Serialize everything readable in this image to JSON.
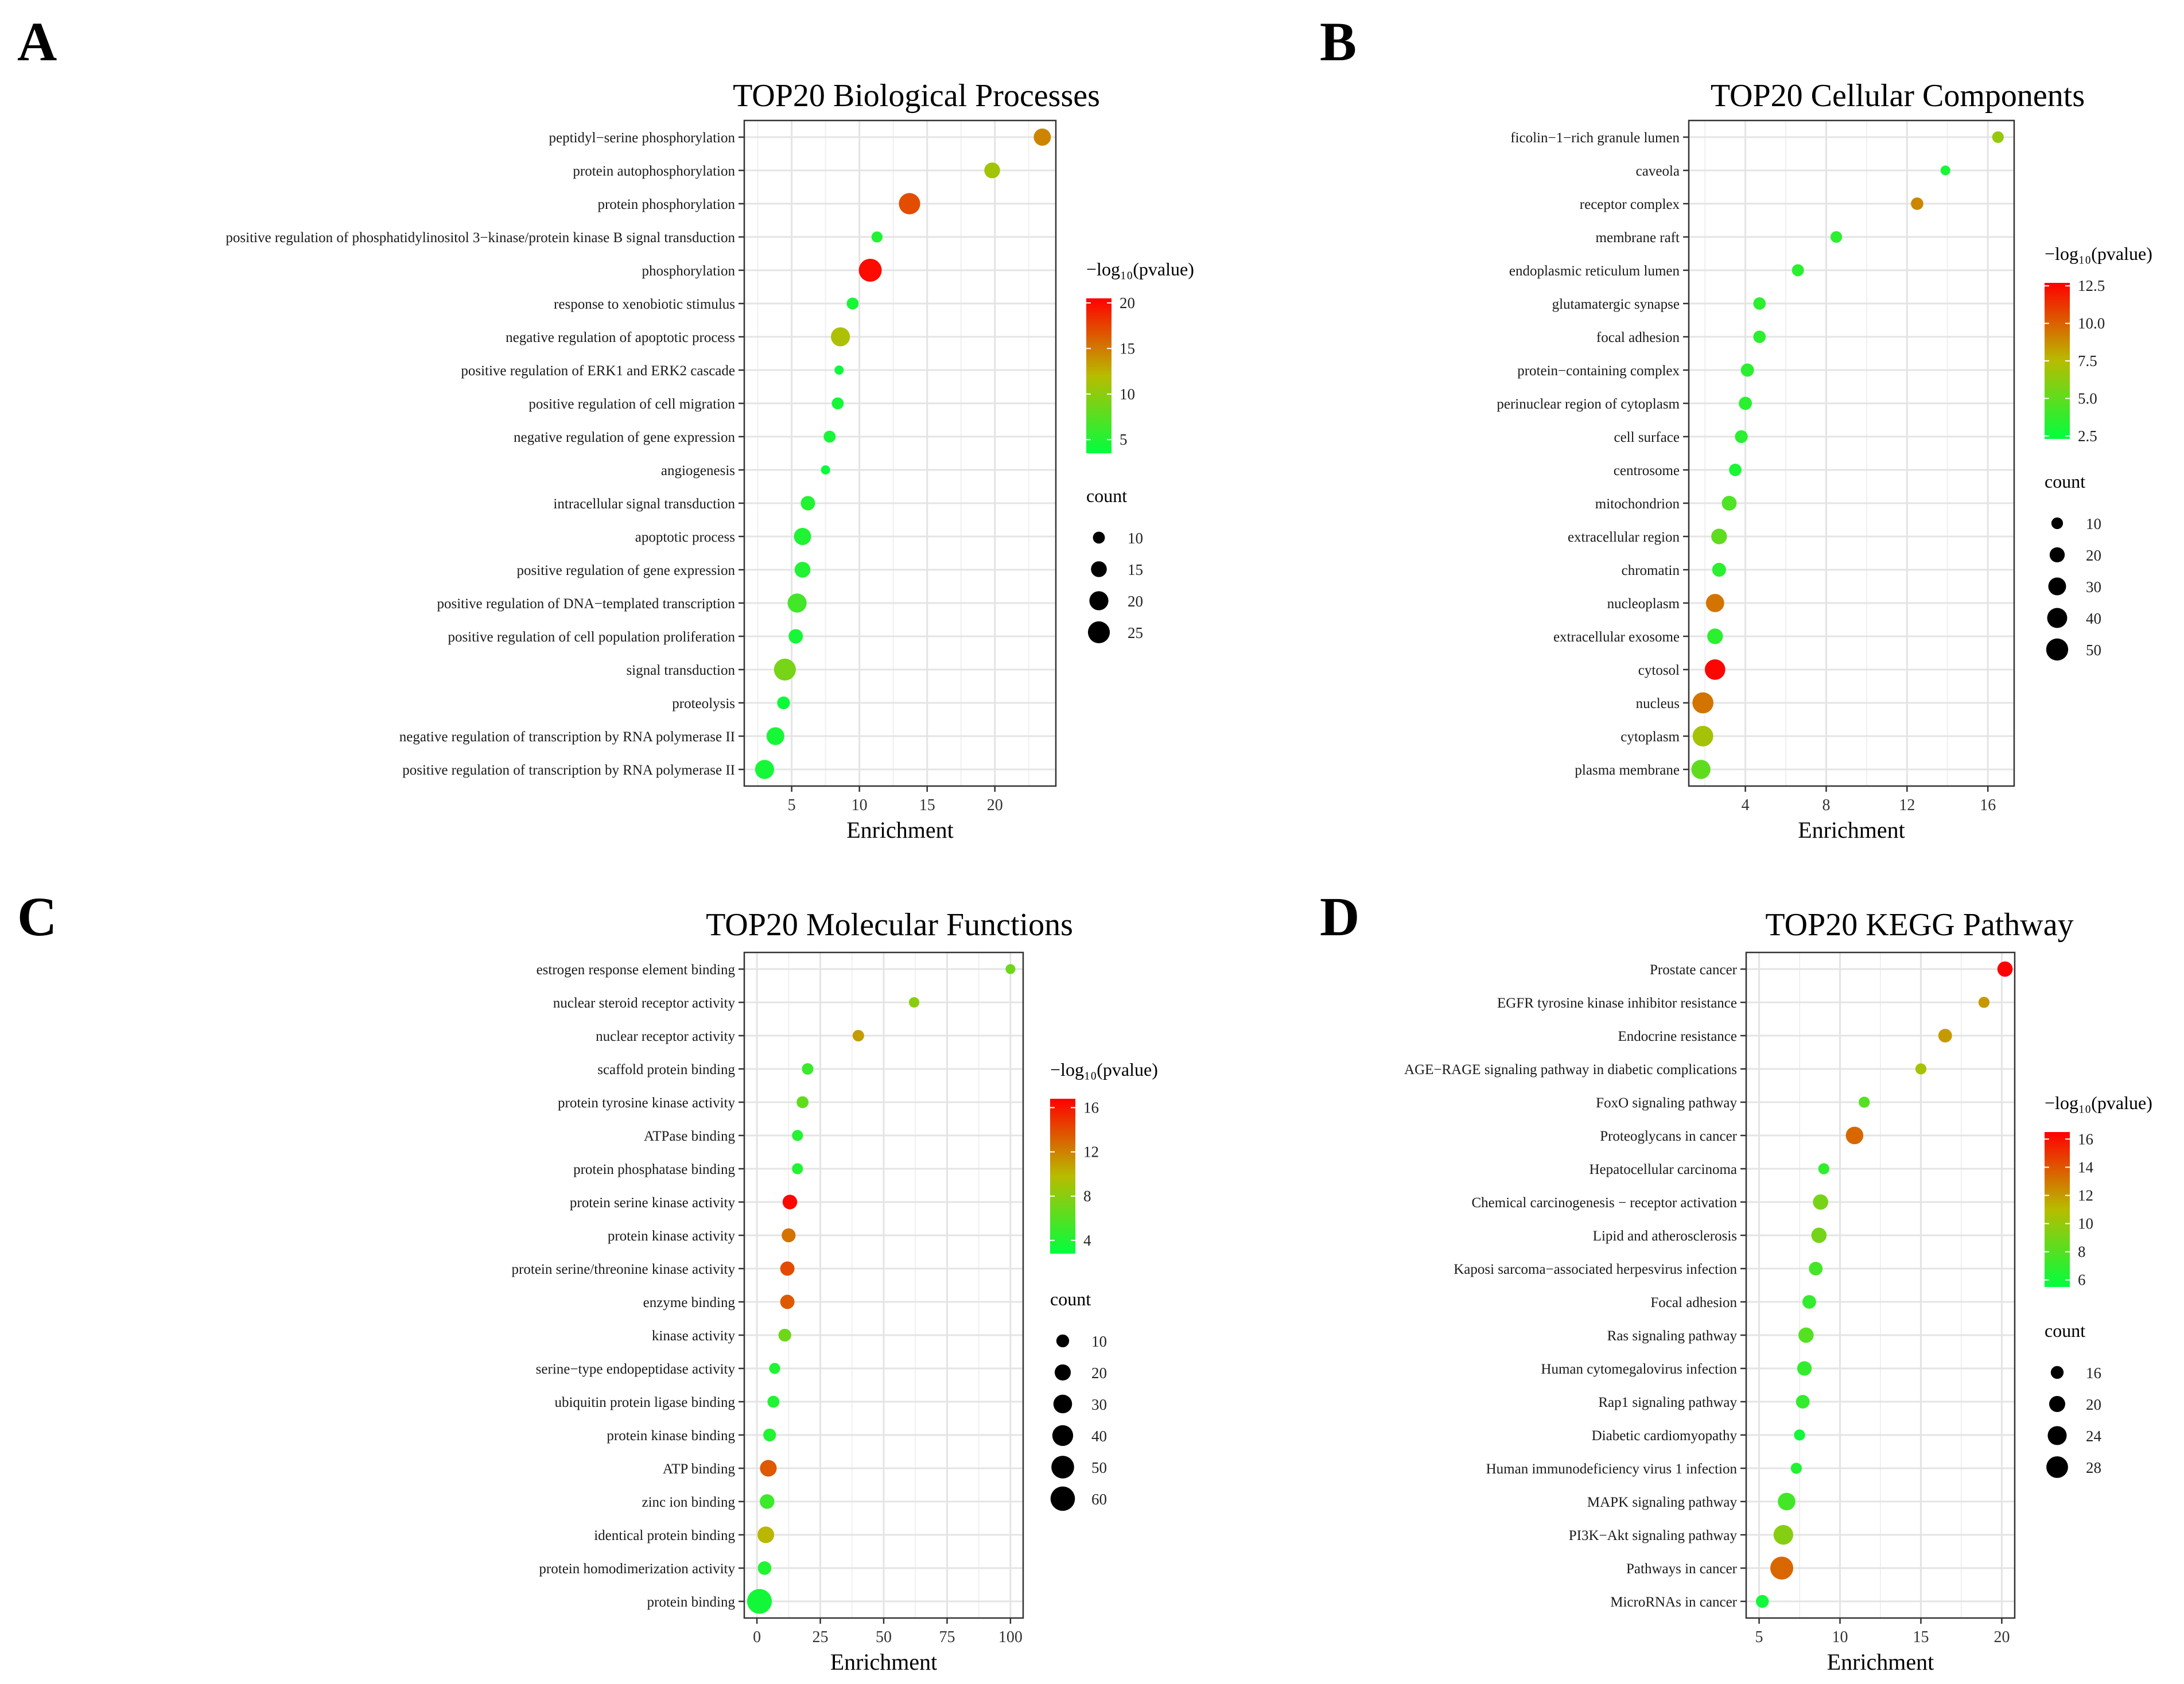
{
  "chart_data": [
    {
      "panel": "A",
      "type": "scatter",
      "title": "TOP20 Biological Processes",
      "xlabel": "Enrichment",
      "xlim": [
        1.5,
        24.5
      ],
      "xticks": [
        5,
        10,
        15,
        20
      ],
      "color_legend": {
        "title": "−log₁₀(pvalue)",
        "ticks": [
          5,
          10,
          15,
          20
        ],
        "range": [
          3.5,
          20.5
        ]
      },
      "size_legend": {
        "title": "count",
        "values": [
          10,
          15,
          20,
          25
        ],
        "range": [
          7,
          27
        ]
      },
      "points": [
        {
          "term": "peptidyl−serine phosphorylation",
          "enrichment": 23.5,
          "neglog10p": 14.5,
          "count": 17
        },
        {
          "term": "protein autophosphorylation",
          "enrichment": 19.8,
          "neglog10p": 11.0,
          "count": 15
        },
        {
          "term": "protein phosphorylation",
          "enrichment": 13.7,
          "neglog10p": 17.0,
          "count": 24
        },
        {
          "term": "positive regulation of phosphatidylinositol 3−kinase/protein kinase B signal transduction",
          "enrichment": 11.3,
          "neglog10p": 5.0,
          "count": 9
        },
        {
          "term": "phosphorylation",
          "enrichment": 10.8,
          "neglog10p": 20.0,
          "count": 27
        },
        {
          "term": "response to xenobiotic stimulus",
          "enrichment": 9.5,
          "neglog10p": 4.5,
          "count": 10
        },
        {
          "term": "negative regulation of apoptotic process",
          "enrichment": 8.6,
          "neglog10p": 11.5,
          "count": 20
        },
        {
          "term": "positive regulation of ERK1 and ERK2 cascade",
          "enrichment": 8.5,
          "neglog10p": 4.0,
          "count": 7
        },
        {
          "term": "positive regulation of cell migration",
          "enrichment": 8.4,
          "neglog10p": 4.5,
          "count": 10
        },
        {
          "term": "negative regulation of gene expression",
          "enrichment": 7.8,
          "neglog10p": 4.5,
          "count": 10
        },
        {
          "term": "angiogenesis",
          "enrichment": 7.5,
          "neglog10p": 3.8,
          "count": 7
        },
        {
          "term": "intracellular signal transduction",
          "enrichment": 6.2,
          "neglog10p": 5.0,
          "count": 13
        },
        {
          "term": "apoptotic process",
          "enrichment": 5.8,
          "neglog10p": 5.0,
          "count": 17
        },
        {
          "term": "positive regulation of gene expression",
          "enrichment": 5.8,
          "neglog10p": 5.0,
          "count": 15
        },
        {
          "term": "positive regulation of DNA−templated transcription",
          "enrichment": 5.4,
          "neglog10p": 6.5,
          "count": 20
        },
        {
          "term": "positive regulation of cell population proliferation",
          "enrichment": 5.3,
          "neglog10p": 4.5,
          "count": 13
        },
        {
          "term": "signal transduction",
          "enrichment": 4.5,
          "neglog10p": 9.0,
          "count": 25
        },
        {
          "term": "proteolysis",
          "enrichment": 4.4,
          "neglog10p": 4.0,
          "count": 11
        },
        {
          "term": "negative regulation of transcription by RNA polymerase II",
          "enrichment": 3.8,
          "neglog10p": 4.5,
          "count": 18
        },
        {
          "term": "positive regulation of transcription by RNA polymerase II",
          "enrichment": 3.0,
          "neglog10p": 4.5,
          "count": 20
        }
      ]
    },
    {
      "panel": "B",
      "type": "scatter",
      "title": "TOP20 Cellular Components",
      "xlabel": "Enrichment",
      "xlim": [
        1.2,
        17.3
      ],
      "xticks": [
        4,
        8,
        12,
        16
      ],
      "color_legend": {
        "title": "−log₁₀(pvalue)",
        "ticks": [
          2.5,
          5.0,
          7.5,
          10.0,
          12.5
        ],
        "tick_labels": [
          "2.5",
          "5.0",
          "7.5",
          "10.0",
          "12.5"
        ],
        "range": [
          2.3,
          12.7
        ]
      },
      "size_legend": {
        "title": "count",
        "values": [
          10,
          20,
          30,
          40,
          50
        ],
        "range": [
          5,
          55
        ]
      },
      "points": [
        {
          "term": "ficolin−1−rich granule lumen",
          "enrichment": 16.5,
          "neglog10p": 6.5,
          "count": 10
        },
        {
          "term": "caveola",
          "enrichment": 13.9,
          "neglog10p": 3.0,
          "count": 6
        },
        {
          "term": "receptor complex",
          "enrichment": 12.5,
          "neglog10p": 9.0,
          "count": 12
        },
        {
          "term": "membrane raft",
          "enrichment": 8.5,
          "neglog10p": 3.5,
          "count": 10
        },
        {
          "term": "endoplasmic reticulum lumen",
          "enrichment": 6.6,
          "neglog10p": 3.5,
          "count": 11
        },
        {
          "term": "glutamatergic synapse",
          "enrichment": 4.7,
          "neglog10p": 3.5,
          "count": 12
        },
        {
          "term": "focal adhesion",
          "enrichment": 4.7,
          "neglog10p": 3.5,
          "count": 12
        },
        {
          "term": "protein−containing complex",
          "enrichment": 4.1,
          "neglog10p": 3.5,
          "count": 14
        },
        {
          "term": "perinuclear region of cytoplasm",
          "enrichment": 4.0,
          "neglog10p": 3.5,
          "count": 14
        },
        {
          "term": "cell surface",
          "enrichment": 3.8,
          "neglog10p": 3.5,
          "count": 13
        },
        {
          "term": "centrosome",
          "enrichment": 3.5,
          "neglog10p": 3.0,
          "count": 12
        },
        {
          "term": "mitochondrion",
          "enrichment": 3.2,
          "neglog10p": 4.5,
          "count": 19
        },
        {
          "term": "extracellular region",
          "enrichment": 2.7,
          "neglog10p": 5.0,
          "count": 22
        },
        {
          "term": "chromatin",
          "enrichment": 2.7,
          "neglog10p": 3.5,
          "count": 16
        },
        {
          "term": "nucleoplasm",
          "enrichment": 2.5,
          "neglog10p": 9.5,
          "count": 32
        },
        {
          "term": "extracellular exosome",
          "enrichment": 2.5,
          "neglog10p": 3.5,
          "count": 22
        },
        {
          "term": "cytosol",
          "enrichment": 2.5,
          "neglog10p": 12.5,
          "count": 42
        },
        {
          "term": "nucleus",
          "enrichment": 1.9,
          "neglog10p": 9.5,
          "count": 45
        },
        {
          "term": "cytoplasm",
          "enrichment": 1.9,
          "neglog10p": 7.0,
          "count": 43
        },
        {
          "term": "plasma membrane",
          "enrichment": 1.8,
          "neglog10p": 5.0,
          "count": 36
        }
      ]
    },
    {
      "panel": "C",
      "type": "scatter",
      "title": "TOP20 Molecular Functions",
      "xlabel": "Enrichment",
      "xlim": [
        -5,
        105
      ],
      "xticks": [
        0,
        25,
        50,
        75,
        100
      ],
      "color_legend": {
        "title": "−log₁₀(pvalue)",
        "ticks": [
          4,
          8,
          12,
          16
        ],
        "range": [
          2.8,
          16.8
        ]
      },
      "size_legend": {
        "title": "count",
        "values": [
          10,
          20,
          30,
          40,
          50,
          60
        ],
        "range": [
          3,
          65
        ]
      },
      "points": [
        {
          "term": "estrogen response element binding",
          "enrichment": 100,
          "neglog10p": 7.0,
          "count": 4
        },
        {
          "term": "nuclear steroid receptor activity",
          "enrichment": 62,
          "neglog10p": 8.0,
          "count": 5
        },
        {
          "term": "nuclear receptor activity",
          "enrichment": 40,
          "neglog10p": 11.0,
          "count": 7
        },
        {
          "term": "scaffold protein binding",
          "enrichment": 20,
          "neglog10p": 5.0,
          "count": 7
        },
        {
          "term": "protein tyrosine kinase activity",
          "enrichment": 18,
          "neglog10p": 6.5,
          "count": 8
        },
        {
          "term": "ATPase binding",
          "enrichment": 16,
          "neglog10p": 4.0,
          "count": 6
        },
        {
          "term": "protein phosphatase binding",
          "enrichment": 16,
          "neglog10p": 4.0,
          "count": 6
        },
        {
          "term": "protein serine kinase activity",
          "enrichment": 13,
          "neglog10p": 16.5,
          "count": 15
        },
        {
          "term": "protein kinase activity",
          "enrichment": 12.5,
          "neglog10p": 12.5,
          "count": 13
        },
        {
          "term": "protein serine/threonine kinase activity",
          "enrichment": 12,
          "neglog10p": 14.0,
          "count": 14
        },
        {
          "term": "enzyme binding",
          "enrichment": 12,
          "neglog10p": 13.5,
          "count": 14
        },
        {
          "term": "kinase activity",
          "enrichment": 11,
          "neglog10p": 7.0,
          "count": 10
        },
        {
          "term": "serine−type endopeptidase activity",
          "enrichment": 7,
          "neglog10p": 4.0,
          "count": 6
        },
        {
          "term": "ubiquitin protein ligase binding",
          "enrichment": 6.5,
          "neglog10p": 4.0,
          "count": 8
        },
        {
          "term": "protein kinase binding",
          "enrichment": 5,
          "neglog10p": 4.0,
          "count": 10
        },
        {
          "term": "ATP binding",
          "enrichment": 4.5,
          "neglog10p": 13.5,
          "count": 22
        },
        {
          "term": "zinc ion binding",
          "enrichment": 4,
          "neglog10p": 5.0,
          "count": 15
        },
        {
          "term": "identical protein binding",
          "enrichment": 3.5,
          "neglog10p": 10.0,
          "count": 22
        },
        {
          "term": "protein homodimerization activity",
          "enrichment": 3,
          "neglog10p": 4.0,
          "count": 12
        },
        {
          "term": "protein binding",
          "enrichment": 1,
          "neglog10p": 3.5,
          "count": 62
        }
      ]
    },
    {
      "panel": "D",
      "type": "scatter",
      "title": "TOP20 KEGG Pathway",
      "xlabel": "Enrichment",
      "xlim": [
        4.2,
        20.8
      ],
      "xticks": [
        5,
        10,
        15,
        20
      ],
      "color_legend": {
        "title": "−log₁₀(pvalue)",
        "ticks": [
          6,
          8,
          10,
          12,
          14,
          16
        ],
        "range": [
          5.5,
          16.5
        ]
      },
      "size_legend": {
        "title": "count",
        "values": [
          16,
          20,
          24,
          28
        ],
        "range": [
          12,
          30
        ]
      },
      "points": [
        {
          "term": "Prostate cancer",
          "enrichment": 20.2,
          "neglog10p": 16.5,
          "count": 19
        },
        {
          "term": "EGFR tyrosine kinase inhibitor resistance",
          "enrichment": 18.9,
          "neglog10p": 12.0,
          "count": 14
        },
        {
          "term": "Endocrine resistance",
          "enrichment": 16.5,
          "neglog10p": 12.0,
          "count": 17
        },
        {
          "term": "AGE−RAGE signaling pathway in diabetic complications",
          "enrichment": 15.0,
          "neglog10p": 10.5,
          "count": 14
        },
        {
          "term": "FoxO signaling pathway",
          "enrichment": 11.5,
          "neglog10p": 8.0,
          "count": 14
        },
        {
          "term": "Proteoglycans in cancer",
          "enrichment": 10.9,
          "neglog10p": 13.5,
          "count": 22
        },
        {
          "term": "Hepatocellular carcinoma",
          "enrichment": 9.0,
          "neglog10p": 7.0,
          "count": 14
        },
        {
          "term": "Chemical carcinogenesis − receptor activation",
          "enrichment": 8.8,
          "neglog10p": 9.0,
          "count": 19
        },
        {
          "term": "Lipid and atherosclerosis",
          "enrichment": 8.7,
          "neglog10p": 9.0,
          "count": 19
        },
        {
          "term": "Kaposi sarcoma−associated herpesvirus infection",
          "enrichment": 8.5,
          "neglog10p": 7.5,
          "count": 17
        },
        {
          "term": "Focal adhesion",
          "enrichment": 8.1,
          "neglog10p": 7.0,
          "count": 17
        },
        {
          "term": "Ras signaling pathway",
          "enrichment": 7.9,
          "neglog10p": 8.0,
          "count": 19
        },
        {
          "term": "Human cytomegalovirus infection",
          "enrichment": 7.8,
          "neglog10p": 7.0,
          "count": 18
        },
        {
          "term": "Rap1 signaling pathway",
          "enrichment": 7.7,
          "neglog10p": 7.0,
          "count": 17
        },
        {
          "term": "Diabetic cardiomyopathy",
          "enrichment": 7.5,
          "neglog10p": 6.0,
          "count": 14
        },
        {
          "term": "Human immunodeficiency virus 1 infection",
          "enrichment": 7.3,
          "neglog10p": 6.5,
          "count": 14
        },
        {
          "term": "MAPK signaling pathway",
          "enrichment": 6.7,
          "neglog10p": 7.5,
          "count": 22
        },
        {
          "term": "PI3K−Akt signaling pathway",
          "enrichment": 6.5,
          "neglog10p": 9.5,
          "count": 25
        },
        {
          "term": "Pathways in cancer",
          "enrichment": 6.4,
          "neglog10p": 13.5,
          "count": 30
        },
        {
          "term": "MicroRNAs in cancer",
          "enrichment": 5.2,
          "neglog10p": 6.0,
          "count": 16
        }
      ]
    }
  ]
}
